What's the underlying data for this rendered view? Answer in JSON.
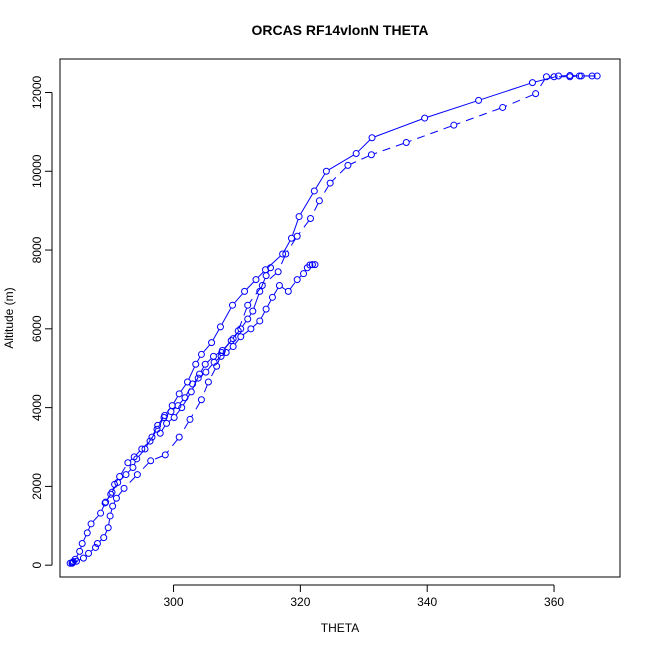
{
  "chart_data": {
    "type": "line",
    "title": "ORCAS RF14vlonN THETA",
    "xlabel": "THETA",
    "ylabel": "Altitude (m)",
    "xlim": [
      282.1,
      370.4
    ],
    "ylim": [
      -300,
      12850
    ],
    "x_ticks": [
      300,
      320,
      340,
      360
    ],
    "y_ticks": [
      0,
      2000,
      4000,
      6000,
      8000,
      10000,
      12000
    ],
    "grid": false,
    "legend": "none",
    "series_color": "#0000ff",
    "series": [
      {
        "style": "solid",
        "points": [
          [
            284.0,
            50
          ],
          [
            284.1,
            70
          ],
          [
            284.2,
            90
          ],
          [
            284.5,
            150
          ],
          [
            285.2,
            350
          ],
          [
            285.6,
            550
          ],
          [
            286.4,
            820
          ],
          [
            287.0,
            1050
          ],
          [
            288.5,
            1320
          ],
          [
            289.2,
            1580
          ],
          [
            290.1,
            1800
          ],
          [
            291.2,
            2100
          ],
          [
            292.5,
            2300
          ],
          [
            293.6,
            2480
          ],
          [
            294.2,
            2700
          ],
          [
            295.5,
            2950
          ],
          [
            296.6,
            3250
          ],
          [
            297.5,
            3550
          ],
          [
            298.6,
            3800
          ],
          [
            299.8,
            4050
          ],
          [
            300.9,
            4350
          ],
          [
            302.2,
            4650
          ],
          [
            303.5,
            5100
          ],
          [
            304.4,
            5350
          ],
          [
            306.0,
            5650
          ],
          [
            307.4,
            6050
          ],
          [
            309.3,
            6600
          ],
          [
            311.2,
            6950
          ],
          [
            313.0,
            7250
          ],
          [
            314.5,
            7500
          ],
          [
            317.2,
            7900
          ],
          [
            318.6,
            8300
          ],
          [
            319.8,
            8850
          ],
          [
            322.2,
            9500
          ],
          [
            324.1,
            10000
          ],
          [
            328.8,
            10450
          ],
          [
            331.3,
            10850
          ],
          [
            339.6,
            11350
          ],
          [
            348.1,
            11800
          ],
          [
            356.6,
            12250
          ],
          [
            360.7,
            12420
          ],
          [
            362.5,
            12430
          ],
          [
            364.3,
            12420
          ],
          [
            366.8,
            12420
          ]
        ]
      },
      {
        "style": "dashed",
        "points": [
          [
            366.0,
            12420
          ],
          [
            364.0,
            12420
          ],
          [
            362.5,
            12400
          ],
          [
            360.0,
            12400
          ],
          [
            358.8,
            12400
          ],
          [
            357.1,
            11970
          ],
          [
            351.9,
            11620
          ],
          [
            344.2,
            11170
          ],
          [
            336.7,
            10730
          ],
          [
            331.2,
            10420
          ],
          [
            327.5,
            10150
          ],
          [
            324.7,
            9700
          ],
          [
            323.0,
            9250
          ],
          [
            321.6,
            8800
          ],
          [
            319.5,
            8350
          ],
          [
            317.7,
            7900
          ],
          [
            316.5,
            7450
          ],
          [
            314.0,
            7100
          ],
          [
            311.7,
            6600
          ],
          [
            310.2,
            5950
          ],
          [
            309.1,
            5700
          ],
          [
            307.6,
            5400
          ],
          [
            306.8,
            5050
          ],
          [
            305.5,
            4650
          ],
          [
            304.4,
            4200
          ],
          [
            302.6,
            3700
          ],
          [
            300.9,
            3250
          ],
          [
            298.7,
            2800
          ],
          [
            296.4,
            2650
          ],
          [
            294.3,
            2300
          ],
          [
            292.2,
            1950
          ],
          [
            291.0,
            1700
          ],
          [
            290.4,
            1500
          ],
          [
            290.0,
            1250
          ],
          [
            289.7,
            950
          ],
          [
            289.0,
            700
          ],
          [
            288.0,
            550
          ],
          [
            287.7,
            450
          ],
          [
            286.6,
            300
          ],
          [
            285.8,
            180
          ],
          [
            284.7,
            100
          ],
          [
            284.1,
            60
          ],
          [
            283.7,
            50
          ]
        ]
      },
      {
        "style": "dashed",
        "points": [
          [
            289.3,
            1600
          ],
          [
            290.3,
            1850
          ],
          [
            290.7,
            2050
          ],
          [
            291.5,
            2250
          ],
          [
            292.8,
            2600
          ],
          [
            293.8,
            2750
          ],
          [
            295.0,
            2950
          ],
          [
            296.3,
            3150
          ],
          [
            297.4,
            3450
          ],
          [
            298.5,
            3750
          ],
          [
            299.6,
            3900
          ],
          [
            300.7,
            4050
          ],
          [
            301.8,
            4250
          ],
          [
            303.0,
            4600
          ],
          [
            303.9,
            4750
          ],
          [
            305.1,
            4900
          ],
          [
            306.4,
            5150
          ],
          [
            307.5,
            5300
          ],
          [
            308.3,
            5400
          ],
          [
            309.4,
            5550
          ],
          [
            310.6,
            5800
          ],
          [
            312.2,
            6000
          ],
          [
            313.6,
            6200
          ],
          [
            314.6,
            6500
          ],
          [
            315.6,
            6800
          ],
          [
            316.7,
            7100
          ],
          [
            318.1,
            6950
          ],
          [
            319.5,
            7250
          ],
          [
            320.5,
            7400
          ],
          [
            321.1,
            7550
          ],
          [
            321.5,
            7620
          ],
          [
            321.9,
            7630
          ],
          [
            322.3,
            7630
          ]
        ]
      },
      {
        "style": "solid",
        "points": [
          [
            297.9,
            3350
          ],
          [
            298.9,
            3600
          ],
          [
            300.1,
            3750
          ],
          [
            301.3,
            4000
          ],
          [
            302.8,
            4400
          ],
          [
            304.1,
            4850
          ],
          [
            305.0,
            5100
          ],
          [
            306.3,
            5300
          ],
          [
            307.7,
            5450
          ],
          [
            309.4,
            5750
          ],
          [
            310.6,
            6000
          ],
          [
            311.7,
            6250
          ],
          [
            312.5,
            6450
          ],
          [
            313.6,
            6950
          ],
          [
            314.6,
            7350
          ],
          [
            315.3,
            7550
          ]
        ]
      }
    ]
  }
}
